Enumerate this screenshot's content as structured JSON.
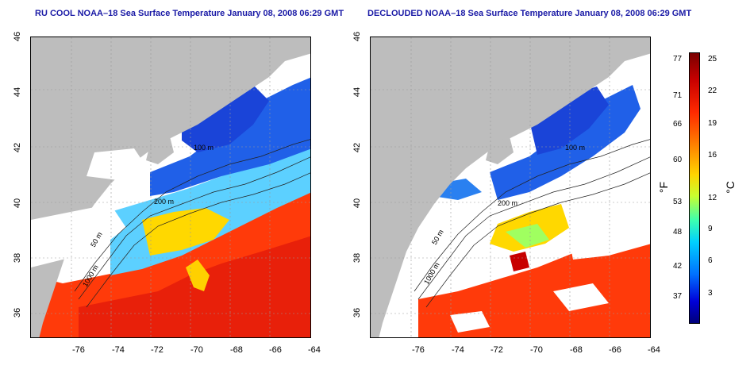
{
  "titles": {
    "left": "RU COOL NOAA–18 Sea Surface Temperature January 08, 2008 06:29 GMT",
    "right": "DECLOUDED NOAA–18 Sea Surface Temperature January 08, 2008 06:29 GMT"
  },
  "axes": {
    "x_ticks": [
      "-76",
      "-74",
      "-72",
      "-70",
      "-68",
      "-66",
      "-64"
    ],
    "y_ticks": [
      "46",
      "44",
      "42",
      "40",
      "38",
      "36"
    ]
  },
  "contour_labels": {
    "c100": "100 m",
    "c200": "200 m",
    "c50": "50 m",
    "c1000": "1000 m"
  },
  "colorbar": {
    "fahrenheit_unit": "°F",
    "celsius_unit": "°C",
    "fahrenheit_ticks": [
      "77",
      "71",
      "66",
      "60",
      "53",
      "48",
      "42",
      "37"
    ],
    "celsius_ticks": [
      "25",
      "22",
      "19",
      "16",
      "12",
      "9",
      "6",
      "3"
    ]
  },
  "colors": {
    "land": "#bdbdbd",
    "cloud": "#ffffff",
    "title": "#1a1aa6"
  }
}
